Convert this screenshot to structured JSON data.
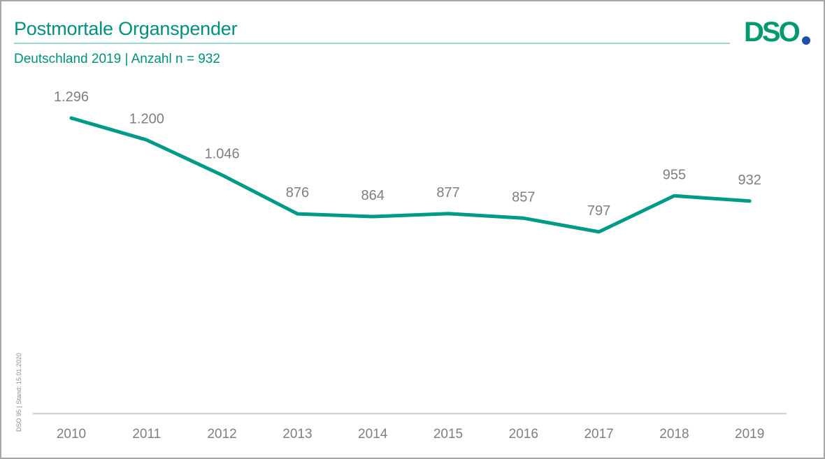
{
  "header": {
    "title": "Postmortale Organspender",
    "subtitle": "Deutschland 2019 | Anzahl  n = 932",
    "logo_text": "DSO"
  },
  "footnote": "DSO 95 | Stand: 15.01.2020",
  "colors": {
    "accent": "#00907c",
    "line": "#009a88",
    "rule": "#9fd6cc",
    "label": "#7f7f7f",
    "axis": "#bfbfbf",
    "logo_green": "#009a6e",
    "logo_dot": "#1f4eab"
  },
  "chart_data": {
    "type": "line",
    "title": "Postmortale Organspender",
    "subtitle": "Deutschland 2019 | Anzahl  n = 932",
    "xlabel": "",
    "ylabel": "",
    "categories": [
      "2010",
      "2011",
      "2012",
      "2013",
      "2014",
      "2015",
      "2016",
      "2017",
      "2018",
      "2019"
    ],
    "values": [
      1296,
      1200,
      1046,
      876,
      864,
      877,
      857,
      797,
      955,
      932
    ],
    "data_labels": [
      "1.296",
      "1.200",
      "1.046",
      "876",
      "864",
      "877",
      "857",
      "797",
      "955",
      "932"
    ],
    "ylim": [
      0,
      1296
    ],
    "grid": false,
    "legend": "none"
  }
}
